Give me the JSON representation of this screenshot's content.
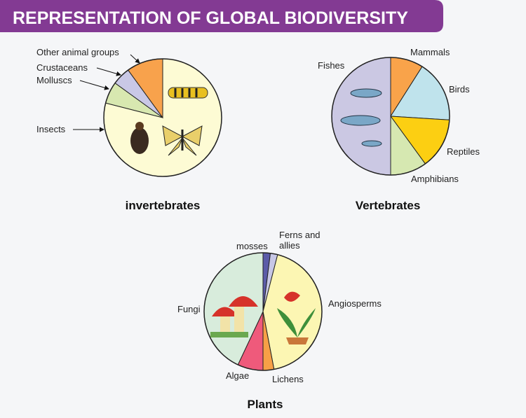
{
  "header": {
    "title": "REPRESENTATION OF GLOBAL BIODIVERSITY"
  },
  "chart_data": [
    {
      "type": "pie",
      "title": "invertebrates",
      "categories": [
        "Insects",
        "Molluscs",
        "Crustaceans",
        "Other animal groups"
      ],
      "values": [
        79,
        6,
        5,
        10
      ],
      "colors": [
        "#fdfbd4",
        "#d8e8b0",
        "#c9c8e6",
        "#f8a24c"
      ]
    },
    {
      "type": "pie",
      "title": "Vertebrates",
      "categories": [
        "Mammals",
        "Birds",
        "Reptiles",
        "Amphibians",
        "Fishes"
      ],
      "values": [
        9,
        17,
        14,
        10,
        50
      ],
      "colors": [
        "#f9a34a",
        "#bfe3ec",
        "#fccf12",
        "#d6e8b1",
        "#cbc8e3"
      ]
    },
    {
      "type": "pie",
      "title": "Plants",
      "categories": [
        "mosses",
        "Ferns and allies",
        "Angiosperms",
        "Lichens",
        "Algae",
        "Fungi"
      ],
      "values": [
        2,
        2,
        43,
        3,
        7,
        43
      ],
      "colors": [
        "#5b5ba8",
        "#c7c7e6",
        "#fcf6b3",
        "#f7a046",
        "#ef5a7b",
        "#d8ecdc"
      ]
    }
  ]
}
